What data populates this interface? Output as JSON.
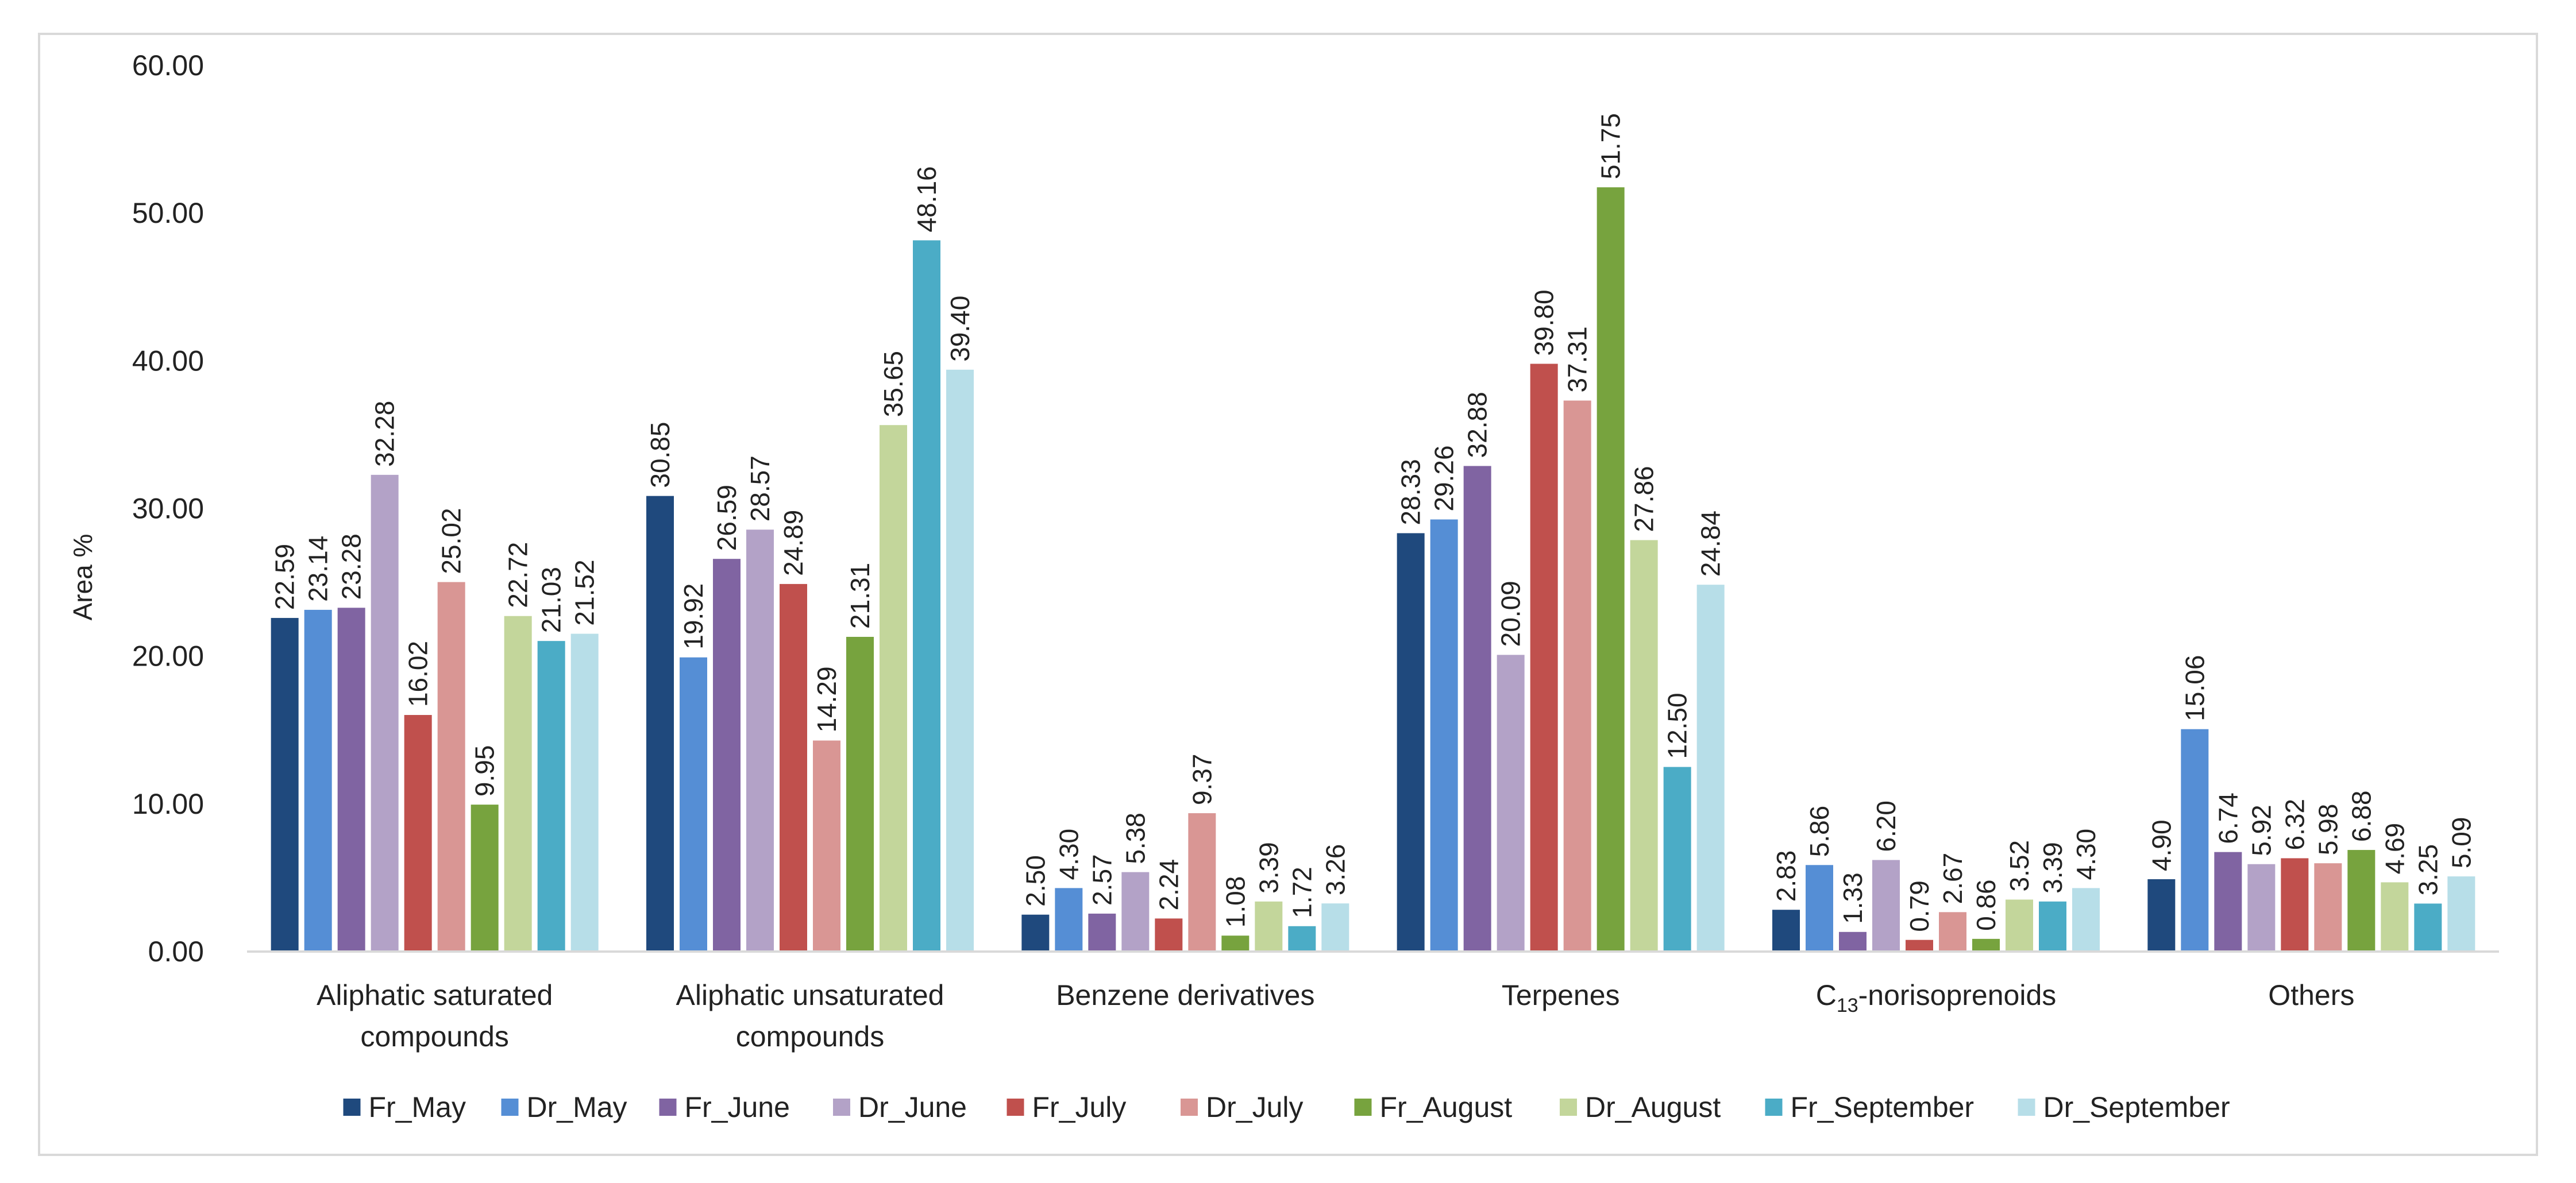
{
  "chart_data": {
    "type": "bar",
    "title": "",
    "xlabel": "",
    "ylabel": "Area %",
    "ylim": [
      0,
      60
    ],
    "yticks": [
      "0.00",
      "10.00",
      "20.00",
      "30.00",
      "40.00",
      "50.00",
      "60.00"
    ],
    "yticks_values": [
      0,
      10,
      20,
      30,
      40,
      50,
      60
    ],
    "grid": false,
    "legend_position": "bottom",
    "categories": [
      "Aliphatic saturated compounds",
      "Aliphatic unsaturated compounds",
      "Benzene derivatives",
      "Terpenes",
      "C13-norisoprenoids",
      "Others"
    ],
    "category_lines": [
      [
        "Aliphatic saturated",
        "compounds"
      ],
      [
        "Aliphatic unsaturated",
        "compounds"
      ],
      [
        "Benzene derivatives"
      ],
      [
        "Terpenes"
      ],
      [
        "C13-norisoprenoids"
      ],
      [
        "Others"
      ]
    ],
    "series": [
      {
        "name": "Fr_May",
        "color": "#1f497d",
        "values": [
          22.59,
          30.85,
          2.5,
          28.33,
          2.83,
          4.9
        ],
        "labels": [
          "22.59",
          "30.85",
          "2.50",
          "28.33",
          "2.83",
          "4.90"
        ]
      },
      {
        "name": "Dr_May",
        "color": "#558ed5",
        "values": [
          23.14,
          19.92,
          4.3,
          29.26,
          5.86,
          15.06
        ],
        "labels": [
          "23.14",
          "19.92",
          "4.30",
          "29.26",
          "5.86",
          "15.06"
        ]
      },
      {
        "name": "Fr_June",
        "color": "#8064a2",
        "values": [
          23.28,
          26.59,
          2.57,
          32.88,
          1.33,
          6.74
        ],
        "labels": [
          "23.28",
          "26.59",
          "2.57",
          "32.88",
          "1.33",
          "6.74"
        ]
      },
      {
        "name": "Dr_June",
        "color": "#b3a2c7",
        "values": [
          32.28,
          28.57,
          5.38,
          20.09,
          6.2,
          5.92
        ],
        "labels": [
          "32.28",
          "28.57",
          "5.38",
          "20.09",
          "6.20",
          "5.92"
        ]
      },
      {
        "name": "Fr_July",
        "color": "#c0504d",
        "values": [
          16.02,
          24.89,
          2.24,
          39.8,
          0.79,
          6.32
        ],
        "labels": [
          "16.02",
          "24.89",
          "2.24",
          "39.80",
          "0.79",
          "6.32"
        ]
      },
      {
        "name": "Dr_July",
        "color": "#d99694",
        "values": [
          25.02,
          14.29,
          9.37,
          37.31,
          2.67,
          5.98
        ],
        "labels": [
          "25.02",
          "14.29",
          "9.37",
          "37.31",
          "2.67",
          "5.98"
        ]
      },
      {
        "name": "Fr_August",
        "color": "#77a33e",
        "values": [
          9.95,
          21.31,
          1.08,
          51.75,
          0.86,
          6.88
        ],
        "labels": [
          "9.95",
          "21.31",
          "1.08",
          "51.75",
          "0.86",
          "6.88"
        ]
      },
      {
        "name": "Dr_August",
        "color": "#c3d69b",
        "values": [
          22.72,
          35.65,
          3.39,
          27.86,
          3.52,
          4.69
        ],
        "labels": [
          "22.72",
          "35.65",
          "3.39",
          "27.86",
          "3.52",
          "4.69"
        ]
      },
      {
        "name": "Fr_September",
        "color": "#4bacc6",
        "values": [
          21.03,
          48.16,
          1.72,
          12.5,
          3.39,
          3.25
        ],
        "labels": [
          "21.03",
          "48.16",
          "1.72",
          "12.50",
          "3.39",
          "3.25"
        ]
      },
      {
        "name": "Dr_September",
        "color": "#b7dee8",
        "values": [
          21.52,
          39.4,
          3.26,
          24.84,
          4.3,
          5.09
        ],
        "labels": [
          "21.52",
          "39.40",
          "3.26",
          "24.84",
          "4.30",
          "5.09"
        ]
      }
    ]
  },
  "colors": {
    "axis": "#d9d9d9",
    "text": "#222222",
    "frame": "#d9d9d9"
  }
}
